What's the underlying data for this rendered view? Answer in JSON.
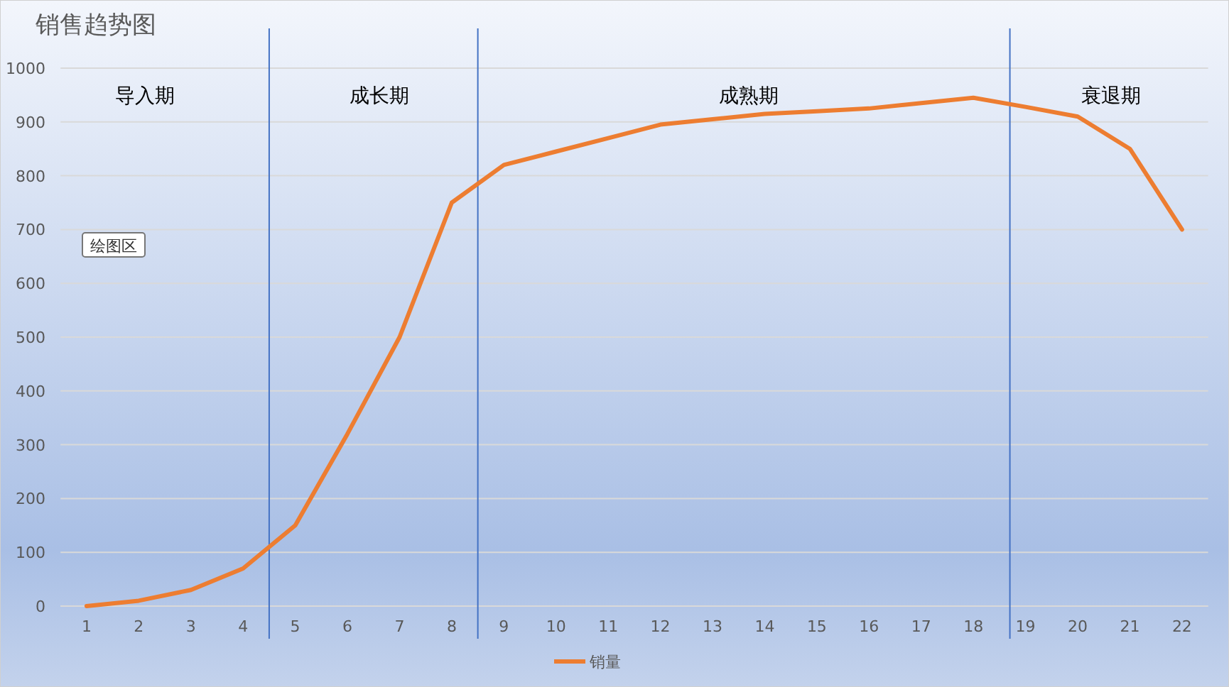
{
  "chart_data": {
    "type": "line",
    "title": "销售趋势图",
    "x": [
      1,
      2,
      3,
      4,
      5,
      6,
      7,
      8,
      9,
      10,
      11,
      12,
      13,
      14,
      15,
      16,
      17,
      18,
      19,
      20,
      21,
      22
    ],
    "xlim": [
      0.5,
      22.5
    ],
    "xticks": [
      1,
      2,
      3,
      4,
      5,
      6,
      7,
      8,
      9,
      10,
      11,
      12,
      13,
      14,
      15,
      16,
      17,
      18,
      19,
      20,
      21,
      22
    ],
    "ylim": [
      0,
      1000
    ],
    "yticks": [
      0,
      100,
      200,
      300,
      400,
      500,
      600,
      700,
      800,
      900,
      1000
    ],
    "series": [
      {
        "name": "销量",
        "color": "#ed7d31",
        "values": [
          0,
          10,
          30,
          70,
          150,
          320,
          500,
          750,
          820,
          845,
          870,
          895,
          905,
          915,
          920,
          925,
          935,
          945,
          928,
          910,
          850,
          700
        ]
      }
    ],
    "ref_lines": [
      {
        "axis": "x",
        "value": 4.5,
        "color": "#4472c4"
      },
      {
        "axis": "x",
        "value": 8.5,
        "color": "#4472c4"
      },
      {
        "axis": "x",
        "value": 18.7,
        "color": "#4472c4"
      }
    ],
    "annotations": [
      "导入期",
      "成长期",
      "成熟期",
      "衰退期",
      "绘图区"
    ],
    "grid": "y",
    "legend": "bottom",
    "marker": "none",
    "line_style": "solid"
  }
}
